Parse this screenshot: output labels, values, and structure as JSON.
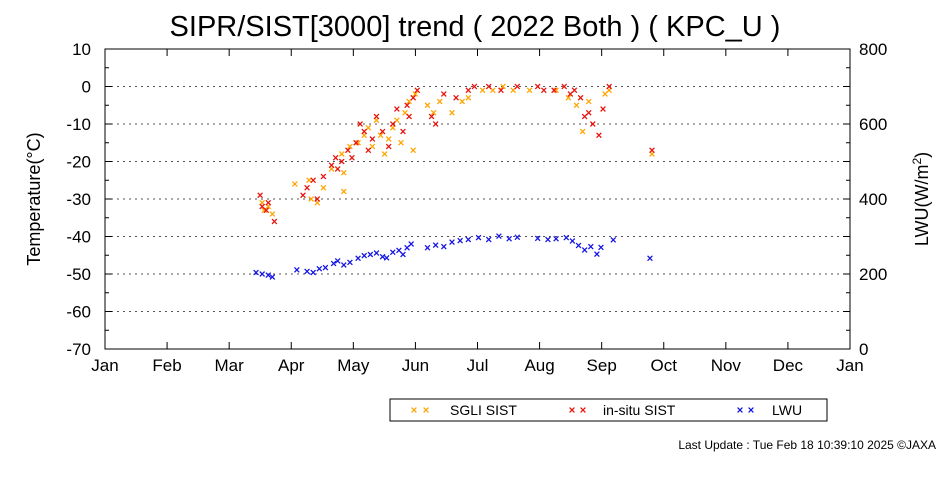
{
  "chart_data": {
    "type": "scatter",
    "title": "SIPR/SIST[3000] trend ( 2022 Both ) ( KPC_U )",
    "ylabel_left": "Temperature(°C)",
    "ylabel_right_prefix": "LWU(W/m",
    "ylabel_right_sup": "2",
    "ylabel_right_suffix": ")",
    "x_tick_labels": [
      "Jan",
      "Feb",
      "Mar",
      "Apr",
      "May",
      "Jun",
      "Jul",
      "Aug",
      "Sep",
      "Oct",
      "Nov",
      "Dec",
      "Jan"
    ],
    "xlim": [
      "2022-01-01",
      "2023-01-01"
    ],
    "ylim_left": [
      -70,
      10
    ],
    "y_ticks_left": [
      10,
      0,
      -10,
      -20,
      -30,
      -40,
      -50,
      -60,
      -70
    ],
    "ylim_right": [
      0,
      800
    ],
    "y_ticks_right": [
      800,
      600,
      400,
      200,
      0
    ],
    "grid": "horizontal dotted",
    "marker": "x",
    "series": [
      {
        "name": "SGLI SIST",
        "axis": "left",
        "color": "#ffa500",
        "points": [
          [
            "2022-03-19",
            -31
          ],
          [
            "2022-03-20",
            -33
          ],
          [
            "2022-03-22",
            -32
          ],
          [
            "2022-03-24",
            -34
          ],
          [
            "2022-04-04",
            -26
          ],
          [
            "2022-04-11",
            -25
          ],
          [
            "2022-04-12",
            -30
          ],
          [
            "2022-04-15",
            -31
          ],
          [
            "2022-04-18",
            -27
          ],
          [
            "2022-04-22",
            -22
          ],
          [
            "2022-04-27",
            -18
          ],
          [
            "2022-04-28",
            -23
          ],
          [
            "2022-04-28",
            -28
          ],
          [
            "2022-05-01",
            -16
          ],
          [
            "2022-05-05",
            -15
          ],
          [
            "2022-05-08",
            -13
          ],
          [
            "2022-05-10",
            -11
          ],
          [
            "2022-05-12",
            -16
          ],
          [
            "2022-05-14",
            -9
          ],
          [
            "2022-05-16",
            -13
          ],
          [
            "2022-05-18",
            -18
          ],
          [
            "2022-05-20",
            -14
          ],
          [
            "2022-05-22",
            -11
          ],
          [
            "2022-05-24",
            -9
          ],
          [
            "2022-05-26",
            -15
          ],
          [
            "2022-05-28",
            -7
          ],
          [
            "2022-05-30",
            -4
          ],
          [
            "2022-06-01",
            -17
          ],
          [
            "2022-06-02",
            -2
          ],
          [
            "2022-06-08",
            -5
          ],
          [
            "2022-06-11",
            -7
          ],
          [
            "2022-06-14",
            -4
          ],
          [
            "2022-06-20",
            -7
          ],
          [
            "2022-06-25",
            -4
          ],
          [
            "2022-06-28",
            -3
          ],
          [
            "2022-07-05",
            -1
          ],
          [
            "2022-07-10",
            -1
          ],
          [
            "2022-07-15",
            0
          ],
          [
            "2022-07-20",
            -1
          ],
          [
            "2022-07-28",
            -1
          ],
          [
            "2022-08-10",
            -1
          ],
          [
            "2022-08-16",
            -3
          ],
          [
            "2022-08-20",
            -5
          ],
          [
            "2022-08-23",
            -12
          ],
          [
            "2022-08-26",
            -4
          ],
          [
            "2022-09-03",
            -2
          ],
          [
            "2022-09-05",
            -1
          ],
          [
            "2022-09-26",
            -18
          ]
        ]
      },
      {
        "name": "in-situ SIST",
        "axis": "left",
        "color": "#e8120c",
        "points": [
          [
            "2022-03-18",
            -29
          ],
          [
            "2022-03-19",
            -32
          ],
          [
            "2022-03-21",
            -33
          ],
          [
            "2022-03-22",
            -31
          ],
          [
            "2022-03-25",
            -36
          ],
          [
            "2022-04-08",
            -29
          ],
          [
            "2022-04-10",
            -27
          ],
          [
            "2022-04-13",
            -25
          ],
          [
            "2022-04-15",
            -30
          ],
          [
            "2022-04-18",
            -24
          ],
          [
            "2022-04-22",
            -21
          ],
          [
            "2022-04-24",
            -19
          ],
          [
            "2022-04-25",
            -22
          ],
          [
            "2022-04-27",
            -20
          ],
          [
            "2022-04-30",
            -17
          ],
          [
            "2022-05-02",
            -19
          ],
          [
            "2022-05-04",
            -15
          ],
          [
            "2022-05-06",
            -10
          ],
          [
            "2022-05-08",
            -12
          ],
          [
            "2022-05-10",
            -17
          ],
          [
            "2022-05-12",
            -14
          ],
          [
            "2022-05-14",
            -8
          ],
          [
            "2022-05-17",
            -12
          ],
          [
            "2022-05-20",
            -16
          ],
          [
            "2022-05-22",
            -10
          ],
          [
            "2022-05-24",
            -6
          ],
          [
            "2022-05-27",
            -12
          ],
          [
            "2022-05-29",
            -5
          ],
          [
            "2022-05-30",
            -8
          ],
          [
            "2022-06-01",
            -3
          ],
          [
            "2022-06-03",
            -1
          ],
          [
            "2022-06-10",
            -8
          ],
          [
            "2022-06-12",
            -10
          ],
          [
            "2022-06-16",
            -2
          ],
          [
            "2022-06-22",
            -3
          ],
          [
            "2022-06-28",
            -1
          ],
          [
            "2022-07-01",
            0
          ],
          [
            "2022-07-08",
            0
          ],
          [
            "2022-07-14",
            -1
          ],
          [
            "2022-07-22",
            0
          ],
          [
            "2022-08-01",
            0
          ],
          [
            "2022-08-04",
            -1
          ],
          [
            "2022-08-09",
            -1
          ],
          [
            "2022-08-14",
            0
          ],
          [
            "2022-08-17",
            -2
          ],
          [
            "2022-08-19",
            -1
          ],
          [
            "2022-08-22",
            -3
          ],
          [
            "2022-08-24",
            -8
          ],
          [
            "2022-08-26",
            -7
          ],
          [
            "2022-08-28",
            -10
          ],
          [
            "2022-08-31",
            -13
          ],
          [
            "2022-09-02",
            -6
          ],
          [
            "2022-09-05",
            0
          ],
          [
            "2022-09-26",
            -17
          ]
        ]
      },
      {
        "name": "LWU",
        "axis": "right",
        "color": "#1414e6",
        "points": [
          [
            "2022-03-16",
            204
          ],
          [
            "2022-03-19",
            200
          ],
          [
            "2022-03-22",
            197
          ],
          [
            "2022-03-24",
            192
          ],
          [
            "2022-04-05",
            211
          ],
          [
            "2022-04-10",
            207
          ],
          [
            "2022-04-13",
            204
          ],
          [
            "2022-04-16",
            214
          ],
          [
            "2022-04-19",
            217
          ],
          [
            "2022-04-23",
            228
          ],
          [
            "2022-04-25",
            235
          ],
          [
            "2022-04-28",
            224
          ],
          [
            "2022-05-01",
            231
          ],
          [
            "2022-05-05",
            242
          ],
          [
            "2022-05-08",
            249
          ],
          [
            "2022-05-11",
            252
          ],
          [
            "2022-05-14",
            256
          ],
          [
            "2022-05-17",
            246
          ],
          [
            "2022-05-19",
            243
          ],
          [
            "2022-05-22",
            258
          ],
          [
            "2022-05-25",
            263
          ],
          [
            "2022-05-27",
            252
          ],
          [
            "2022-05-29",
            270
          ],
          [
            "2022-05-31",
            280
          ],
          [
            "2022-06-08",
            270
          ],
          [
            "2022-06-12",
            277
          ],
          [
            "2022-06-16",
            273
          ],
          [
            "2022-06-20",
            285
          ],
          [
            "2022-06-24",
            289
          ],
          [
            "2022-06-28",
            292
          ],
          [
            "2022-07-03",
            297
          ],
          [
            "2022-07-08",
            292
          ],
          [
            "2022-07-13",
            301
          ],
          [
            "2022-07-18",
            294
          ],
          [
            "2022-07-22",
            298
          ],
          [
            "2022-08-01",
            295
          ],
          [
            "2022-08-06",
            292
          ],
          [
            "2022-08-10",
            294
          ],
          [
            "2022-08-15",
            297
          ],
          [
            "2022-08-18",
            288
          ],
          [
            "2022-08-21",
            276
          ],
          [
            "2022-08-24",
            264
          ],
          [
            "2022-08-27",
            273
          ],
          [
            "2022-08-30",
            253
          ],
          [
            "2022-09-01",
            271
          ],
          [
            "2022-09-07",
            291
          ],
          [
            "2022-09-25",
            242
          ]
        ]
      }
    ],
    "legend": {
      "placement": "bottom-right",
      "entries": [
        "SGLI SIST",
        "in-situ SIST",
        "LWU"
      ]
    }
  },
  "footer": {
    "last_update": "Last Update : Tue Feb 18 10:39:10 2025 ©JAXA"
  },
  "colors": {
    "sgli": "#ffa500",
    "insitu": "#e8120c",
    "lwu": "#1414e6",
    "grid": "#555555"
  }
}
